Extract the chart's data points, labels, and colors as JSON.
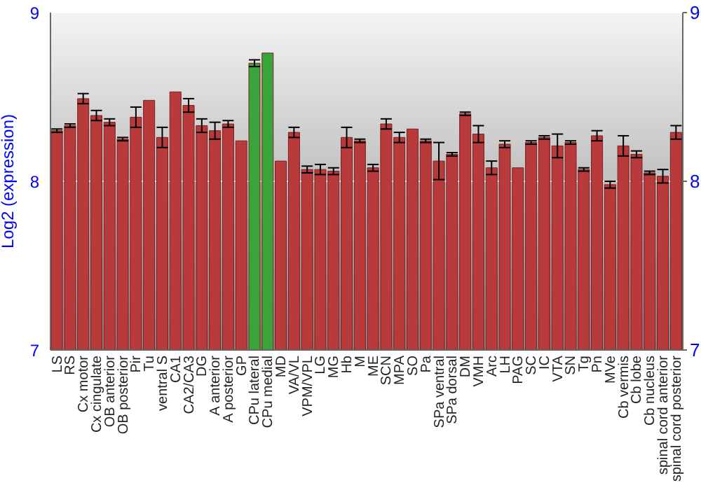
{
  "chart_data": {
    "type": "bar",
    "ylabel": "Log2 (expression)",
    "categories": [
      "LS",
      "RS",
      "Cx motor",
      "Cx cingulate",
      "OB anterior",
      "OB posterior",
      "Pir",
      "Tu",
      "ventral S",
      "CA1",
      "CA2/CA3",
      "DG",
      "A anterior",
      "A posterior",
      "GP",
      "CPu lateral",
      "CPu medial",
      "MD",
      "VA/VL",
      "VPM/VPL",
      "LG",
      "MG",
      "Hb",
      "M",
      "ME",
      "SCN",
      "MPA",
      "SO",
      "Pa",
      "SPa ventral",
      "SPa dorsal",
      "DM",
      "VMH",
      "Arc",
      "LH",
      "PAG",
      "SC",
      "IC",
      "VTA",
      "SN",
      "Tg",
      "Pn",
      "MVe",
      "Cb vermis",
      "Cb lobe",
      "Cb nucleus",
      "spinal cord anterior",
      "spinal cord posterior"
    ],
    "values": [
      8.3,
      8.33,
      8.49,
      8.39,
      8.35,
      8.25,
      8.38,
      8.48,
      8.26,
      8.53,
      8.45,
      8.33,
      8.3,
      8.34,
      8.24,
      8.7,
      8.76,
      8.12,
      8.29,
      8.07,
      8.07,
      8.06,
      8.26,
      8.24,
      8.08,
      8.34,
      8.26,
      8.31,
      8.24,
      8.12,
      8.16,
      8.4,
      8.28,
      8.08,
      8.22,
      8.08,
      8.23,
      8.26,
      8.21,
      8.23,
      8.07,
      8.27,
      7.98,
      8.21,
      8.16,
      8.05,
      8.03,
      8.29
    ],
    "errors": [
      0.01,
      0.01,
      0.03,
      0.03,
      0.02,
      0.01,
      0.06,
      null,
      0.06,
      null,
      0.04,
      0.04,
      0.05,
      0.02,
      null,
      0.02,
      null,
      null,
      0.03,
      0.02,
      0.03,
      0.02,
      0.06,
      0.01,
      0.02,
      0.03,
      0.03,
      null,
      0.01,
      0.11,
      0.01,
      0.01,
      0.05,
      0.04,
      0.02,
      null,
      0.01,
      0.01,
      0.07,
      0.01,
      0.01,
      0.03,
      0.02,
      0.06,
      0.02,
      0.01,
      0.04,
      0.04
    ],
    "colors": [
      "#b83a3a",
      "#b83a3a",
      "#b83a3a",
      "#b83a3a",
      "#b83a3a",
      "#b83a3a",
      "#b83a3a",
      "#b83a3a",
      "#b83a3a",
      "#b83a3a",
      "#b83a3a",
      "#b83a3a",
      "#b83a3a",
      "#b83a3a",
      "#b83a3a",
      "#3aa33a",
      "#3aa33a",
      "#b83a3a",
      "#b83a3a",
      "#b83a3a",
      "#b83a3a",
      "#b83a3a",
      "#b83a3a",
      "#b83a3a",
      "#b83a3a",
      "#b83a3a",
      "#b83a3a",
      "#b83a3a",
      "#b83a3a",
      "#b83a3a",
      "#b83a3a",
      "#b83a3a",
      "#b83a3a",
      "#b83a3a",
      "#b83a3a",
      "#b83a3a",
      "#b83a3a",
      "#b83a3a",
      "#b83a3a",
      "#b83a3a",
      "#b83a3a",
      "#b83a3a",
      "#b83a3a",
      "#b83a3a",
      "#b83a3a",
      "#b83a3a",
      "#b83a3a",
      "#b83a3a"
    ],
    "ylim": [
      7,
      9
    ],
    "yticks": [
      7,
      8,
      9
    ],
    "y2lim": [
      7,
      9
    ],
    "y2ticks": [
      7,
      8,
      9
    ],
    "grid": "y"
  }
}
